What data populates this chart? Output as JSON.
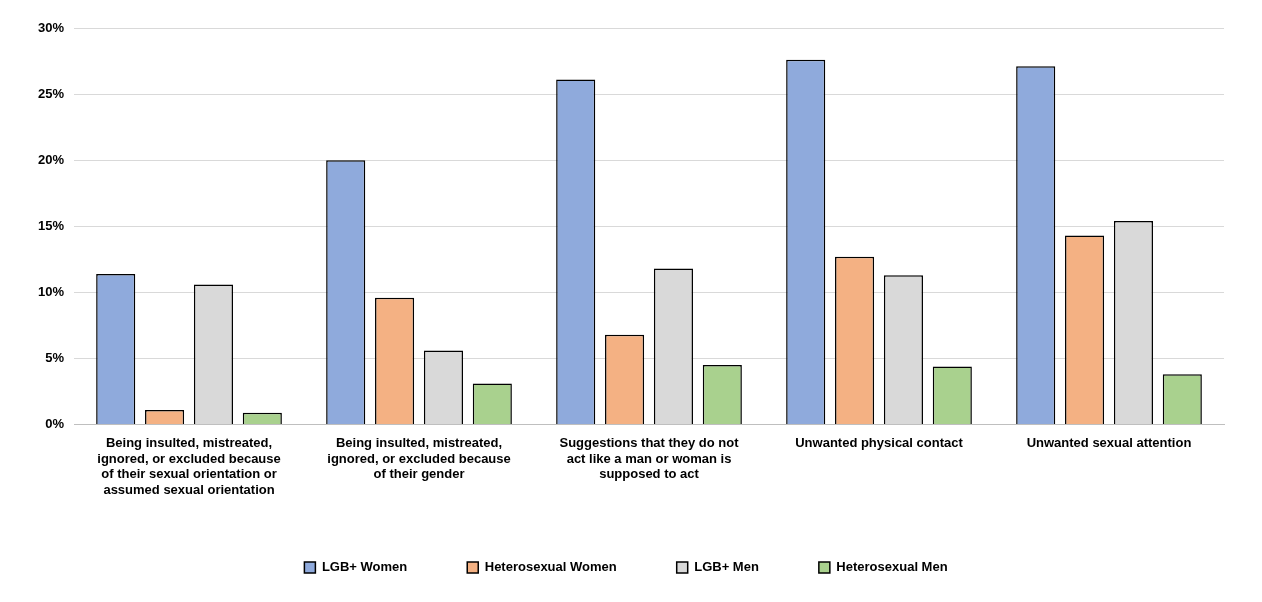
{
  "chart_data": {
    "type": "bar",
    "categories": [
      "Being insulted, mistreated, ignored, or excluded because of their sexual orientation or assumed sexual orientation",
      "Being insulted, mistreated, ignored, or excluded because of their gender",
      "Suggestions that they do not act like a man or woman is supposed to act",
      "Unwanted physical contact",
      "Unwanted sexual attention"
    ],
    "series": [
      {
        "name": "LGB+ Women",
        "color": "#8faadc",
        "values": [
          11.4,
          20.0,
          26.1,
          27.6,
          27.1
        ]
      },
      {
        "name": "Heterosexual Women",
        "color": "#f4b183",
        "values": [
          1.1,
          9.6,
          6.8,
          12.7,
          14.3
        ]
      },
      {
        "name": "LGB+ Men",
        "color": "#d9d9d9",
        "values": [
          10.6,
          5.6,
          11.8,
          11.3,
          15.4
        ]
      },
      {
        "name": "Heterosexual Men",
        "color": "#a9d18e",
        "values": [
          0.9,
          3.1,
          4.5,
          4.4,
          3.8
        ]
      }
    ],
    "ylim": [
      0,
      30
    ],
    "yticks": [
      {
        "value": 0,
        "label": "0%"
      },
      {
        "value": 5,
        "label": "5%"
      },
      {
        "value": 10,
        "label": "10%"
      },
      {
        "value": 15,
        "label": "15%"
      },
      {
        "value": 20,
        "label": "20%"
      },
      {
        "value": 25,
        "label": "25%"
      },
      {
        "value": 30,
        "label": "30%"
      }
    ],
    "grid": "y",
    "legend": "bottom"
  }
}
